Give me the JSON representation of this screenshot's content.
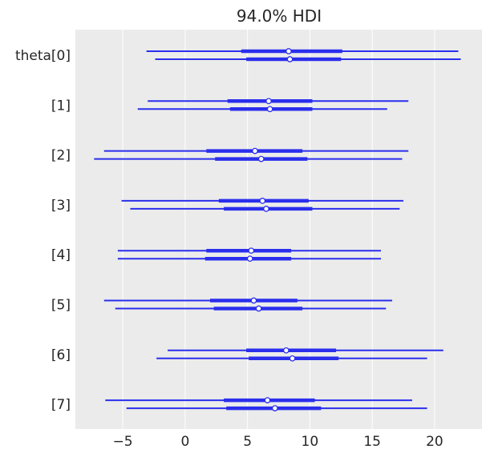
{
  "chart_data": {
    "type": "forest",
    "title": "94.0% HDI",
    "xlim": [
      -8.8,
      23.8
    ],
    "xticks": [
      -5,
      0,
      5,
      10,
      15,
      20
    ],
    "xtick_labels": [
      "−5",
      "0",
      "5",
      "10",
      "15",
      "20"
    ],
    "grid": "vertical",
    "colors": {
      "background": "#ebebeb",
      "grid": "#ffffff",
      "interval": "#2a2eec",
      "point_fill": "#ffffff"
    },
    "groups": [
      {
        "label": "theta[0]",
        "chains": [
          {
            "hdi_94": [
              -3.1,
              21.9
            ],
            "iqr": [
              4.5,
              12.6
            ],
            "point": 8.3
          },
          {
            "hdi_94": [
              -2.4,
              22.1
            ],
            "iqr": [
              4.9,
              12.5
            ],
            "point": 8.4
          }
        ]
      },
      {
        "label": "[1]",
        "chains": [
          {
            "hdi_94": [
              -3.0,
              17.9
            ],
            "iqr": [
              3.4,
              10.2
            ],
            "point": 6.7
          },
          {
            "hdi_94": [
              -3.8,
              16.2
            ],
            "iqr": [
              3.6,
              10.2
            ],
            "point": 6.8
          }
        ]
      },
      {
        "label": "[2]",
        "chains": [
          {
            "hdi_94": [
              -6.5,
              17.9
            ],
            "iqr": [
              1.7,
              9.4
            ],
            "point": 5.6
          },
          {
            "hdi_94": [
              -7.3,
              17.4
            ],
            "iqr": [
              2.4,
              9.8
            ],
            "point": 6.1
          }
        ]
      },
      {
        "label": "[3]",
        "chains": [
          {
            "hdi_94": [
              -5.1,
              17.5
            ],
            "iqr": [
              2.7,
              9.9
            ],
            "point": 6.2
          },
          {
            "hdi_94": [
              -4.4,
              17.2
            ],
            "iqr": [
              3.1,
              10.2
            ],
            "point": 6.5
          }
        ]
      },
      {
        "label": "[4]",
        "chains": [
          {
            "hdi_94": [
              -5.4,
              15.7
            ],
            "iqr": [
              1.7,
              8.5
            ],
            "point": 5.3
          },
          {
            "hdi_94": [
              -5.4,
              15.7
            ],
            "iqr": [
              1.6,
              8.5
            ],
            "point": 5.2
          }
        ]
      },
      {
        "label": "[5]",
        "chains": [
          {
            "hdi_94": [
              -6.5,
              16.6
            ],
            "iqr": [
              2.0,
              9.0
            ],
            "point": 5.5
          },
          {
            "hdi_94": [
              -5.6,
              16.1
            ],
            "iqr": [
              2.3,
              9.4
            ],
            "point": 5.9
          }
        ]
      },
      {
        "label": "[6]",
        "chains": [
          {
            "hdi_94": [
              -1.4,
              20.7
            ],
            "iqr": [
              4.9,
              12.1
            ],
            "point": 8.1
          },
          {
            "hdi_94": [
              -2.3,
              19.4
            ],
            "iqr": [
              5.1,
              12.3
            ],
            "point": 8.6
          }
        ]
      },
      {
        "label": "[7]",
        "chains": [
          {
            "hdi_94": [
              -6.4,
              18.2
            ],
            "iqr": [
              3.1,
              10.4
            ],
            "point": 6.6
          },
          {
            "hdi_94": [
              -4.7,
              19.4
            ],
            "iqr": [
              3.3,
              10.9
            ],
            "point": 7.2
          }
        ]
      }
    ]
  }
}
